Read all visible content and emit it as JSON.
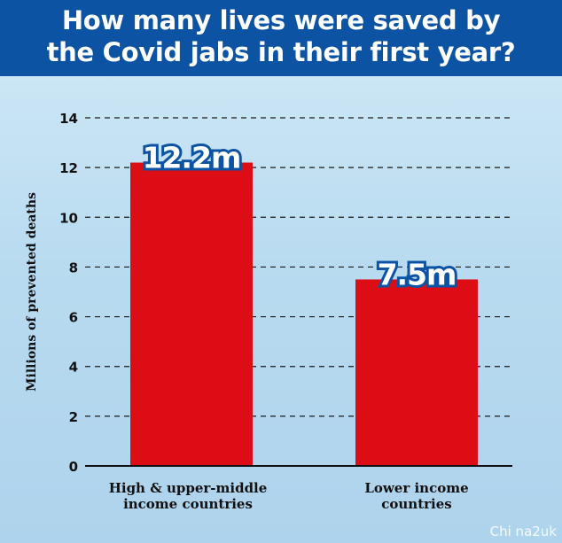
{
  "header": {
    "title_line1": "How many lives were saved by",
    "title_line2": "the Covid jabs in their first year?"
  },
  "watermark": "Chi na2uk",
  "colors": {
    "bar": "#dc0d14",
    "header_bg": "#0d53a4",
    "label_outline": "#0d53a4",
    "grid": "#1a1a1a"
  },
  "chart_data": {
    "type": "bar",
    "title": "How many lives were saved by the Covid jabs in their first year?",
    "xlabel": "",
    "ylabel": "Millions of prevented deaths",
    "ylim": [
      0,
      14
    ],
    "yticks": [
      0,
      2,
      4,
      6,
      8,
      10,
      12,
      14
    ],
    "grid": true,
    "categories": [
      [
        "High & upper-middle",
        "income countries"
      ],
      [
        "Lower income",
        "countries"
      ]
    ],
    "values": [
      12.2,
      7.5
    ],
    "data_labels": [
      "12.2m",
      "7.5m"
    ]
  }
}
